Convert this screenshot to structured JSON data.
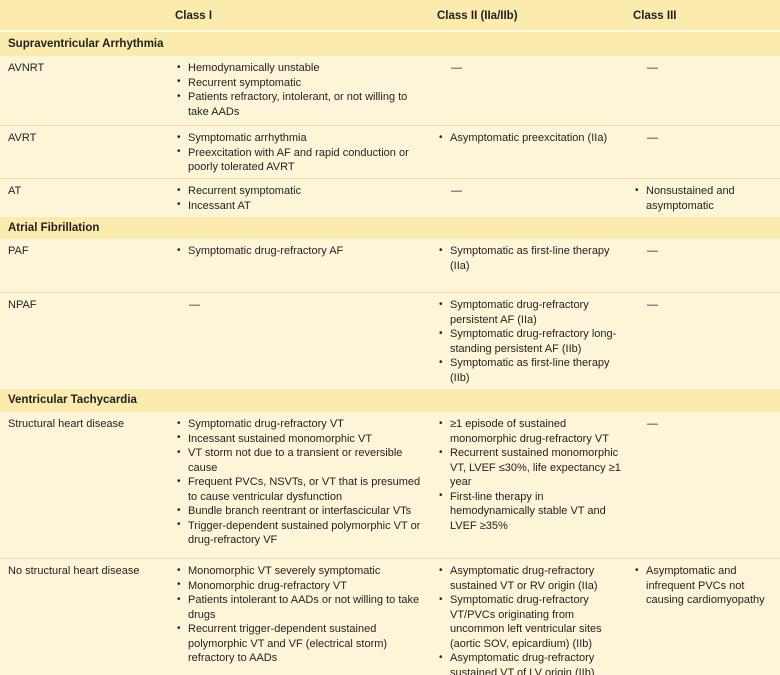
{
  "header": {
    "columns": [
      "Class I",
      "Class II (IIa/IIb)",
      "Class III"
    ]
  },
  "dash_char": "—",
  "colors": {
    "band_yellow": "#FBEBAD",
    "row_cream": "#FDF5D8",
    "divider_tan": "#F0E0A6",
    "text": "#231F20"
  },
  "sections": [
    {
      "title": "Supraventricular Arrhythmia",
      "rows": [
        {
          "label": "AVNRT",
          "cells": [
            {
              "type": "bullets",
              "items": [
                "Hemodynamically unstable",
                "Recurrent symptomatic",
                "Patients refractory, intolerant, or not willing to take AADs"
              ]
            },
            {
              "type": "dash",
              "text": "—"
            },
            {
              "type": "dash",
              "text": "—"
            }
          ]
        },
        {
          "label": "AVRT",
          "cells": [
            {
              "type": "bullets",
              "items": [
                "Symptomatic arrhythmia",
                "Preexcitation with AF and rapid conduction or poorly tolerated AVRT"
              ]
            },
            {
              "type": "bullets",
              "items": [
                "Asymptomatic preexcitation (IIa)"
              ]
            },
            {
              "type": "dash",
              "text": "—"
            }
          ]
        },
        {
          "label": "AT",
          "cells": [
            {
              "type": "bullets",
              "items": [
                "Recurrent symptomatic",
                "Incessant AT"
              ]
            },
            {
              "type": "dash",
              "text": "—"
            },
            {
              "type": "bullets",
              "items": [
                "Nonsustained and asymptomatic"
              ]
            }
          ]
        }
      ]
    },
    {
      "title": "Atrial Fibrillation",
      "rows": [
        {
          "label": "PAF",
          "cells": [
            {
              "type": "bullets",
              "items": [
                "Symptomatic drug-refractory AF"
              ]
            },
            {
              "type": "bullets",
              "items": [
                "Symptomatic as first-line therapy (IIa)"
              ]
            },
            {
              "type": "dash",
              "text": "—"
            }
          ]
        },
        {
          "label": "NPAF",
          "cells": [
            {
              "type": "dash",
              "text": "—"
            },
            {
              "type": "bullets",
              "items": [
                "Symptomatic drug-refractory persistent AF (IIa)",
                "Symptomatic drug-refractory long-standing persistent AF (IIb)",
                "Symptomatic as first-line therapy (IIb)"
              ]
            },
            {
              "type": "dash",
              "text": "—"
            }
          ]
        }
      ]
    },
    {
      "title": "Ventricular Tachycardia",
      "rows": [
        {
          "label": "Structural heart disease",
          "cells": [
            {
              "type": "bullets",
              "items": [
                "Symptomatic drug-refractory VT",
                "Incessant sustained monomorphic VT",
                "VT storm not due to a transient or reversible cause",
                "Frequent PVCs, NSVTs, or VT that is presumed to cause ventricular dysfunction",
                "Bundle branch reentrant or interfascicular VTs",
                "Trigger-dependent sustained polymorphic VT or drug-refractory VF"
              ]
            },
            {
              "type": "bullets",
              "items": [
                "≥1 episode of sustained monomorphic drug-refractory VT",
                "Recurrent sustained monomorphic VT, LVEF ≤30%, life expectancy ≥1 year",
                "First-line therapy in hemodynamically stable VT and LVEF ≥35%"
              ]
            },
            {
              "type": "dash",
              "text": "—"
            }
          ]
        },
        {
          "label": "No structural heart disease",
          "cells": [
            {
              "type": "bullets",
              "items": [
                "Monomorphic VT severely symptomatic",
                "Monomorphic drug-refractory VT",
                "Patients intolerant to AADs or not willing to take drugs",
                "Recurrent trigger-dependent sustained polymorphic VT and VF (electrical storm) refractory to AADs"
              ]
            },
            {
              "type": "bullets",
              "items": [
                "Asymptomatic drug-refractory sustained VT or RV origin (IIa)",
                "Symptomatic drug-refractory VT/PVCs originating from uncommon left ventricular sites (aortic SOV, epicardium) (IIb)",
                "Asymptomatic drug-refractory sustained VT of LV origin (IIb)"
              ]
            },
            {
              "type": "bullets",
              "items": [
                "Asymptomatic and infrequent PVCs not causing cardiomyopathy"
              ]
            }
          ]
        }
      ]
    }
  ]
}
